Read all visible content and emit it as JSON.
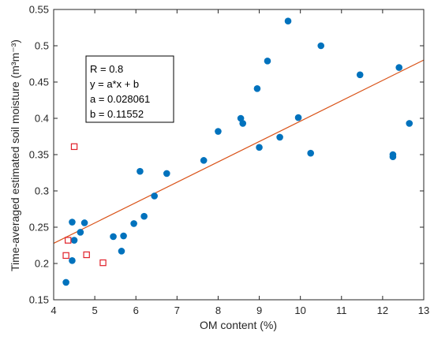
{
  "chart_data": {
    "type": "scatter",
    "xlabel": "OM content (%)",
    "ylabel": "Time-averaged estimated soil moisture (m³m⁻³)",
    "xlim": [
      4,
      13
    ],
    "ylim": [
      0.15,
      0.55
    ],
    "xticks": [
      "4",
      "5",
      "6",
      "7",
      "8",
      "9",
      "10",
      "11",
      "12",
      "13"
    ],
    "yticks": [
      "0.15",
      "0.2",
      "0.25",
      "0.3",
      "0.35",
      "0.4",
      "0.45",
      "0.5",
      "0.55"
    ],
    "annotation": [
      "R = 0.8",
      "y = a*x + b",
      "a = 0.028061",
      "b = 0.11552"
    ],
    "fit_line": {
      "a": 0.028061,
      "b": 0.11552,
      "color": "#d95319"
    },
    "series": [
      {
        "marker": "filled-circle",
        "color": "#0072bd",
        "points": [
          [
            4.3,
            0.174
          ],
          [
            4.45,
            0.257
          ],
          [
            4.45,
            0.204
          ],
          [
            4.5,
            0.232
          ],
          [
            4.65,
            0.243
          ],
          [
            4.75,
            0.256
          ],
          [
            5.45,
            0.237
          ],
          [
            5.65,
            0.217
          ],
          [
            5.7,
            0.238
          ],
          [
            5.95,
            0.255
          ],
          [
            6.1,
            0.327
          ],
          [
            6.2,
            0.265
          ],
          [
            6.45,
            0.293
          ],
          [
            6.75,
            0.324
          ],
          [
            7.65,
            0.342
          ],
          [
            8.0,
            0.382
          ],
          [
            8.55,
            0.4
          ],
          [
            8.6,
            0.393
          ],
          [
            8.95,
            0.441
          ],
          [
            9.0,
            0.36
          ],
          [
            9.2,
            0.479
          ],
          [
            9.5,
            0.374
          ],
          [
            9.7,
            0.534
          ],
          [
            9.95,
            0.401
          ],
          [
            10.25,
            0.352
          ],
          [
            10.5,
            0.5
          ],
          [
            11.45,
            0.46
          ],
          [
            12.25,
            0.35
          ],
          [
            12.25,
            0.347
          ],
          [
            12.4,
            0.47
          ],
          [
            12.65,
            0.393
          ]
        ]
      },
      {
        "marker": "open-square",
        "color": "#e0202a",
        "points": [
          [
            4.5,
            0.361
          ],
          [
            4.35,
            0.232
          ],
          [
            4.3,
            0.211
          ],
          [
            4.8,
            0.212
          ],
          [
            5.2,
            0.201
          ]
        ]
      }
    ]
  }
}
